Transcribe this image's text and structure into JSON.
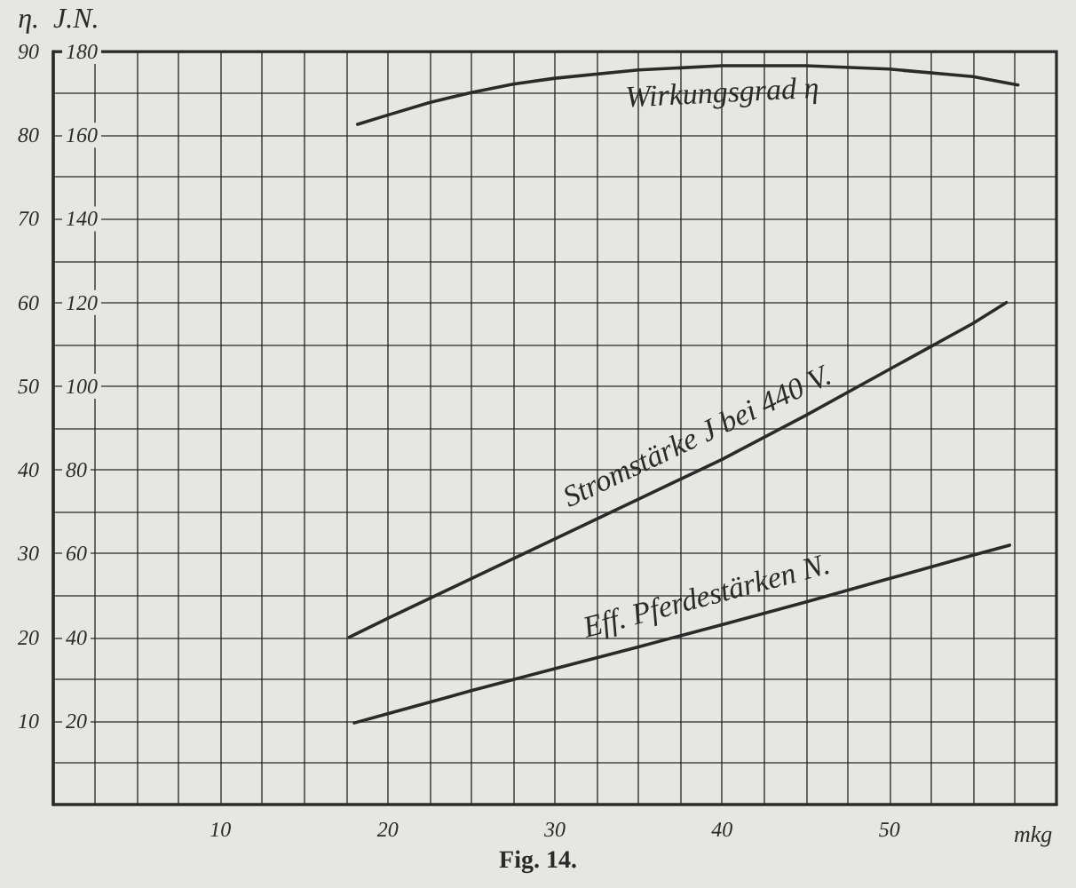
{
  "chart_data": {
    "type": "line",
    "xlabel": "mkg",
    "ylabel": "η.",
    "y2label": "J.N.",
    "annotations": [
      "Fig. 14."
    ],
    "xlim": [
      0,
      60
    ],
    "xticks": [
      {
        "value": 2.5,
        "label": null
      },
      {
        "value": 5,
        "label": null
      },
      {
        "value": 7.5,
        "label": null
      },
      10,
      {
        "value": 12.5,
        "label": null
      },
      {
        "value": 15,
        "label": null
      },
      {
        "value": 17.5,
        "label": null
      },
      20,
      {
        "value": 22.5,
        "label": null
      },
      {
        "value": 25,
        "label": null
      },
      {
        "value": 27.5,
        "label": null
      },
      30,
      {
        "value": 32.5,
        "label": null
      },
      {
        "value": 35,
        "label": null
      },
      {
        "value": 37.5,
        "label": null
      },
      40,
      {
        "value": 42.5,
        "label": null
      },
      {
        "value": 45,
        "label": null
      },
      {
        "value": 47.5,
        "label": null
      },
      50,
      {
        "value": 52.5,
        "label": null
      },
      {
        "value": 55,
        "label": null
      },
      {
        "value": 57.5,
        "label": null
      }
    ],
    "ylim": [
      0,
      90
    ],
    "yticks": [
      {
        "value": 5,
        "label": null
      },
      10,
      {
        "value": 15,
        "label": null
      },
      20,
      {
        "value": 25,
        "label": null
      },
      30,
      {
        "value": 35,
        "label": null
      },
      40,
      {
        "value": 45,
        "label": null
      },
      50,
      {
        "value": 55,
        "label": null
      },
      60,
      {
        "value": 65,
        "label": null
      },
      70,
      {
        "value": 75,
        "label": null
      },
      80,
      {
        "value": 85,
        "label": null
      },
      90
    ],
    "y2lim": [
      0,
      180
    ],
    "y2ticks": [
      20,
      40,
      60,
      80,
      100,
      120,
      140,
      160,
      180
    ],
    "grid": true,
    "marker": "none",
    "line_style": "solid",
    "series": [
      {
        "name": "Wirkungsgrad η",
        "color": "#2a2a2a",
        "x": [
          18.2,
          20,
          22.5,
          25,
          27.5,
          30,
          35,
          40,
          45,
          50,
          55,
          57.7
        ],
        "values": [
          81.3,
          82.4,
          83.9,
          85.1,
          86.1,
          86.8,
          87.8,
          88.3,
          88.3,
          87.9,
          87,
          86
        ]
      },
      {
        "name": "Stromstärke J bei 440 V.",
        "color": "#2a2a2a",
        "axis": "y2",
        "x": [
          17.7,
          20,
          25,
          30,
          35,
          40,
          45,
          50,
          55,
          57
        ],
        "values": [
          40,
          44.5,
          54,
          63.5,
          73,
          82.5,
          93,
          104,
          115,
          120
        ]
      },
      {
        "name": "Eff. Pferdestärken N.",
        "color": "#2a2a2a",
        "axis": "y2",
        "x": [
          18,
          20,
          25,
          30,
          35,
          40,
          45,
          50,
          55,
          57.2
        ],
        "values": [
          19.5,
          21.7,
          27.2,
          32.5,
          37.7,
          43,
          48.4,
          54,
          59.6,
          62
        ]
      }
    ]
  }
}
